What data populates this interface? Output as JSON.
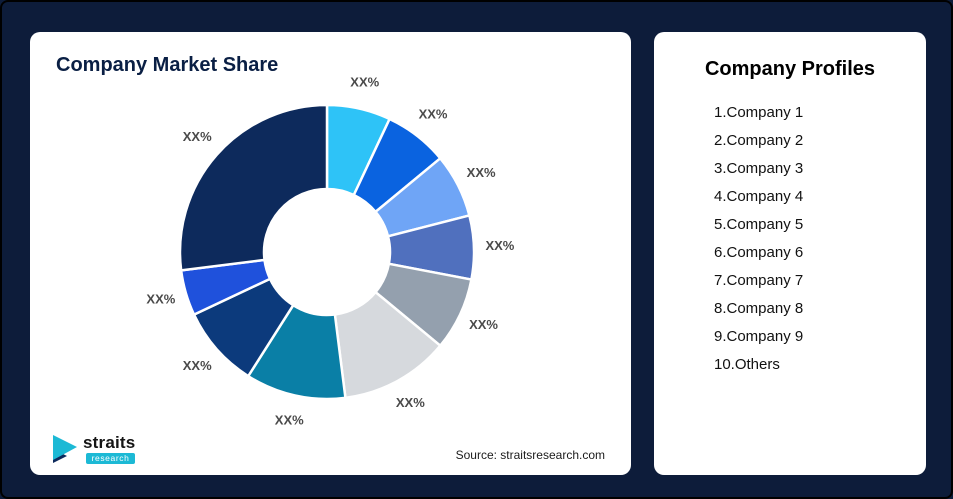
{
  "page": {
    "background_color": "#0D1C3A"
  },
  "market_share_card": {
    "title": "Company Market Share",
    "source": "Source: straitsresearch.com"
  },
  "logo": {
    "brand": "straits",
    "brand_sub": "research",
    "accent_color": "#1CB9D5",
    "dark_color": "#0D2A5C"
  },
  "profiles_card": {
    "title": "Company Profiles",
    "items": [
      "1.Company 1",
      "2.Company 2",
      "3.Company 3",
      "4.Company 4",
      "5.Company 5",
      "6.Company 6",
      "7.Company 7",
      "8.Company 8",
      "9.Company 9",
      "10.Others"
    ]
  },
  "chart_data": {
    "type": "pie",
    "subtype": "donut",
    "title": "Company Market Share",
    "unit": "%",
    "direction": "clockwise",
    "start_angle_deg": 0,
    "inner_radius_ratio": 0.43,
    "legend": "none",
    "values_estimated_from_arc_size": true,
    "segments": [
      {
        "label": "XX%",
        "value": 7,
        "color": "#2EC3F7"
      },
      {
        "label": "XX%",
        "value": 7,
        "color": "#0A63E0"
      },
      {
        "label": "XX%",
        "value": 7,
        "color": "#6FA5F6"
      },
      {
        "label": "XX%",
        "value": 7,
        "color": "#5070BE"
      },
      {
        "label": "XX%",
        "value": 8,
        "color": "#94A0AE"
      },
      {
        "label": "XX%",
        "value": 12,
        "color": "#D6D9DD"
      },
      {
        "label": "XX%",
        "value": 11,
        "color": "#0A7FA6"
      },
      {
        "label": "XX%",
        "value": 9,
        "color": "#0C3A7C"
      },
      {
        "label": "XX%",
        "value": 5,
        "color": "#1F51DC"
      },
      {
        "label": "XX%",
        "value": 27,
        "color": "#0D2A5C"
      }
    ]
  }
}
